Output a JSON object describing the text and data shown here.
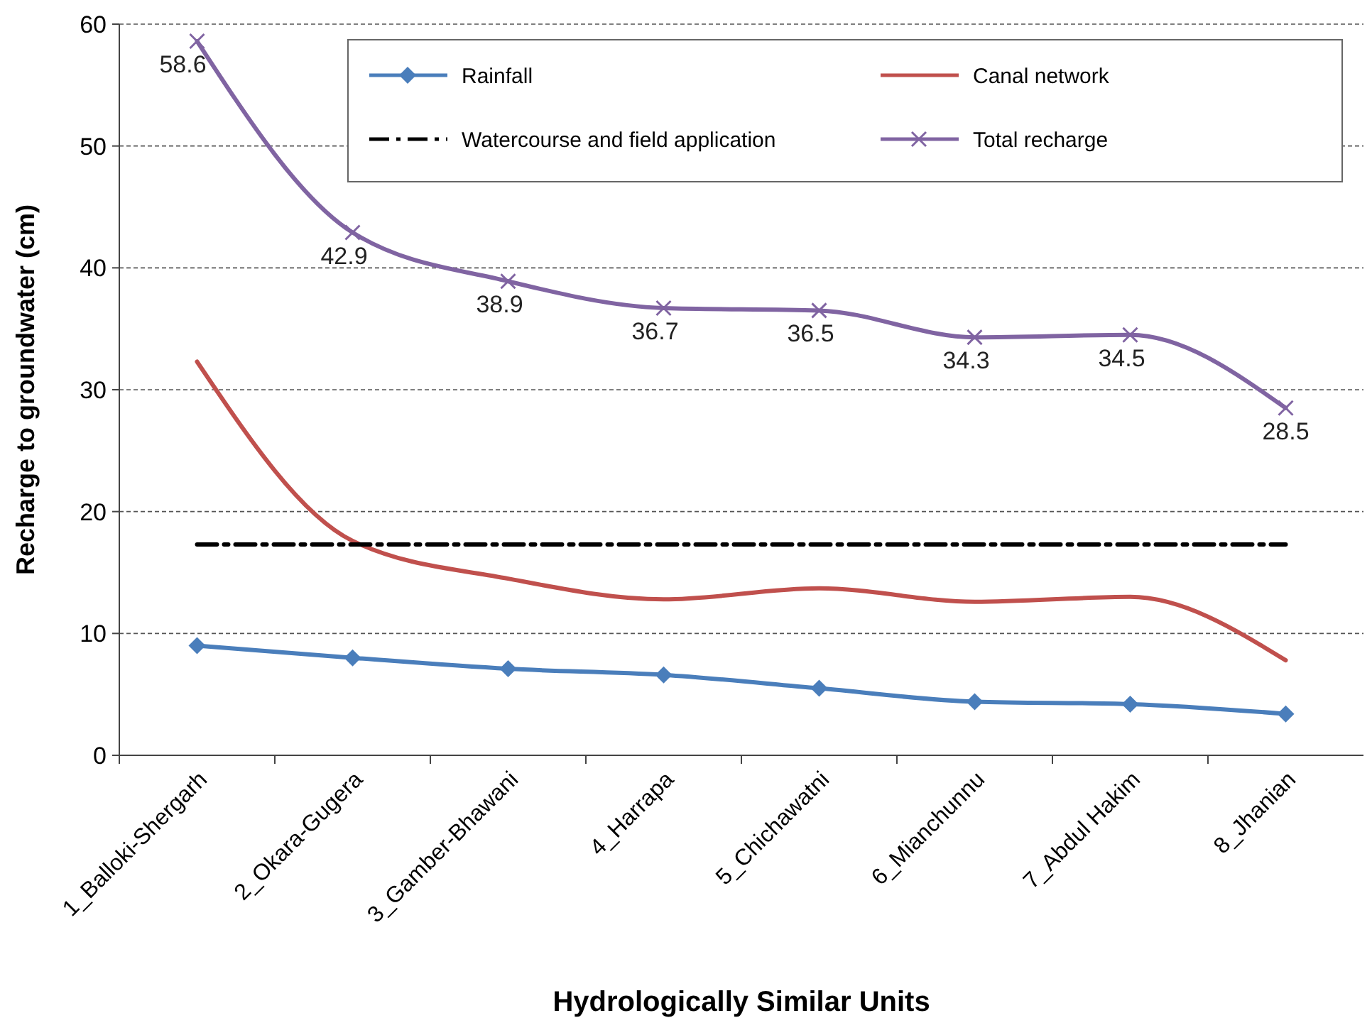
{
  "chart_data": {
    "type": "line",
    "xlabel": "Hydrologically Similar Units",
    "ylabel": "Recharge to groundwater (cm)",
    "categories": [
      "1_Balloki-Shergarh",
      "2_Okara-Gugera",
      "3_Gamber-Bhawani",
      "4_Harrapa",
      "5_Chichawatni",
      "6_Mianchunnu",
      "7_Abdul Hakim",
      "8_Jhanian"
    ],
    "series": [
      {
        "name": "Rainfall",
        "color": "#4a7ebb",
        "marker": "diamond",
        "line_style": "solid",
        "values": [
          9.0,
          8.0,
          7.1,
          6.6,
          5.5,
          4.4,
          4.2,
          3.4
        ]
      },
      {
        "name": "Canal network",
        "color": "#c0504d",
        "marker": "none",
        "line_style": "solid",
        "values": [
          32.3,
          17.6,
          14.5,
          12.8,
          13.7,
          12.6,
          13.0,
          7.8
        ]
      },
      {
        "name": "Watercourse and field application",
        "color": "#000000",
        "marker": "none",
        "line_style": "dashed",
        "values": [
          17.3,
          17.3,
          17.3,
          17.3,
          17.3,
          17.3,
          17.3,
          17.3
        ]
      },
      {
        "name": "Total recharge",
        "color": "#8064a2",
        "marker": "cross",
        "line_style": "solid",
        "values": [
          58.6,
          42.9,
          38.9,
          36.7,
          36.5,
          34.3,
          34.5,
          28.5
        ],
        "value_labels": [
          "58.6",
          "42.9",
          "38.9",
          "36.7",
          "36.5",
          "34.3",
          "34.5",
          "28.5"
        ]
      }
    ],
    "ylim": [
      0,
      60
    ],
    "yticks": [
      0,
      10,
      20,
      30,
      40,
      50,
      60
    ],
    "grid": "y",
    "legend": "top right"
  }
}
